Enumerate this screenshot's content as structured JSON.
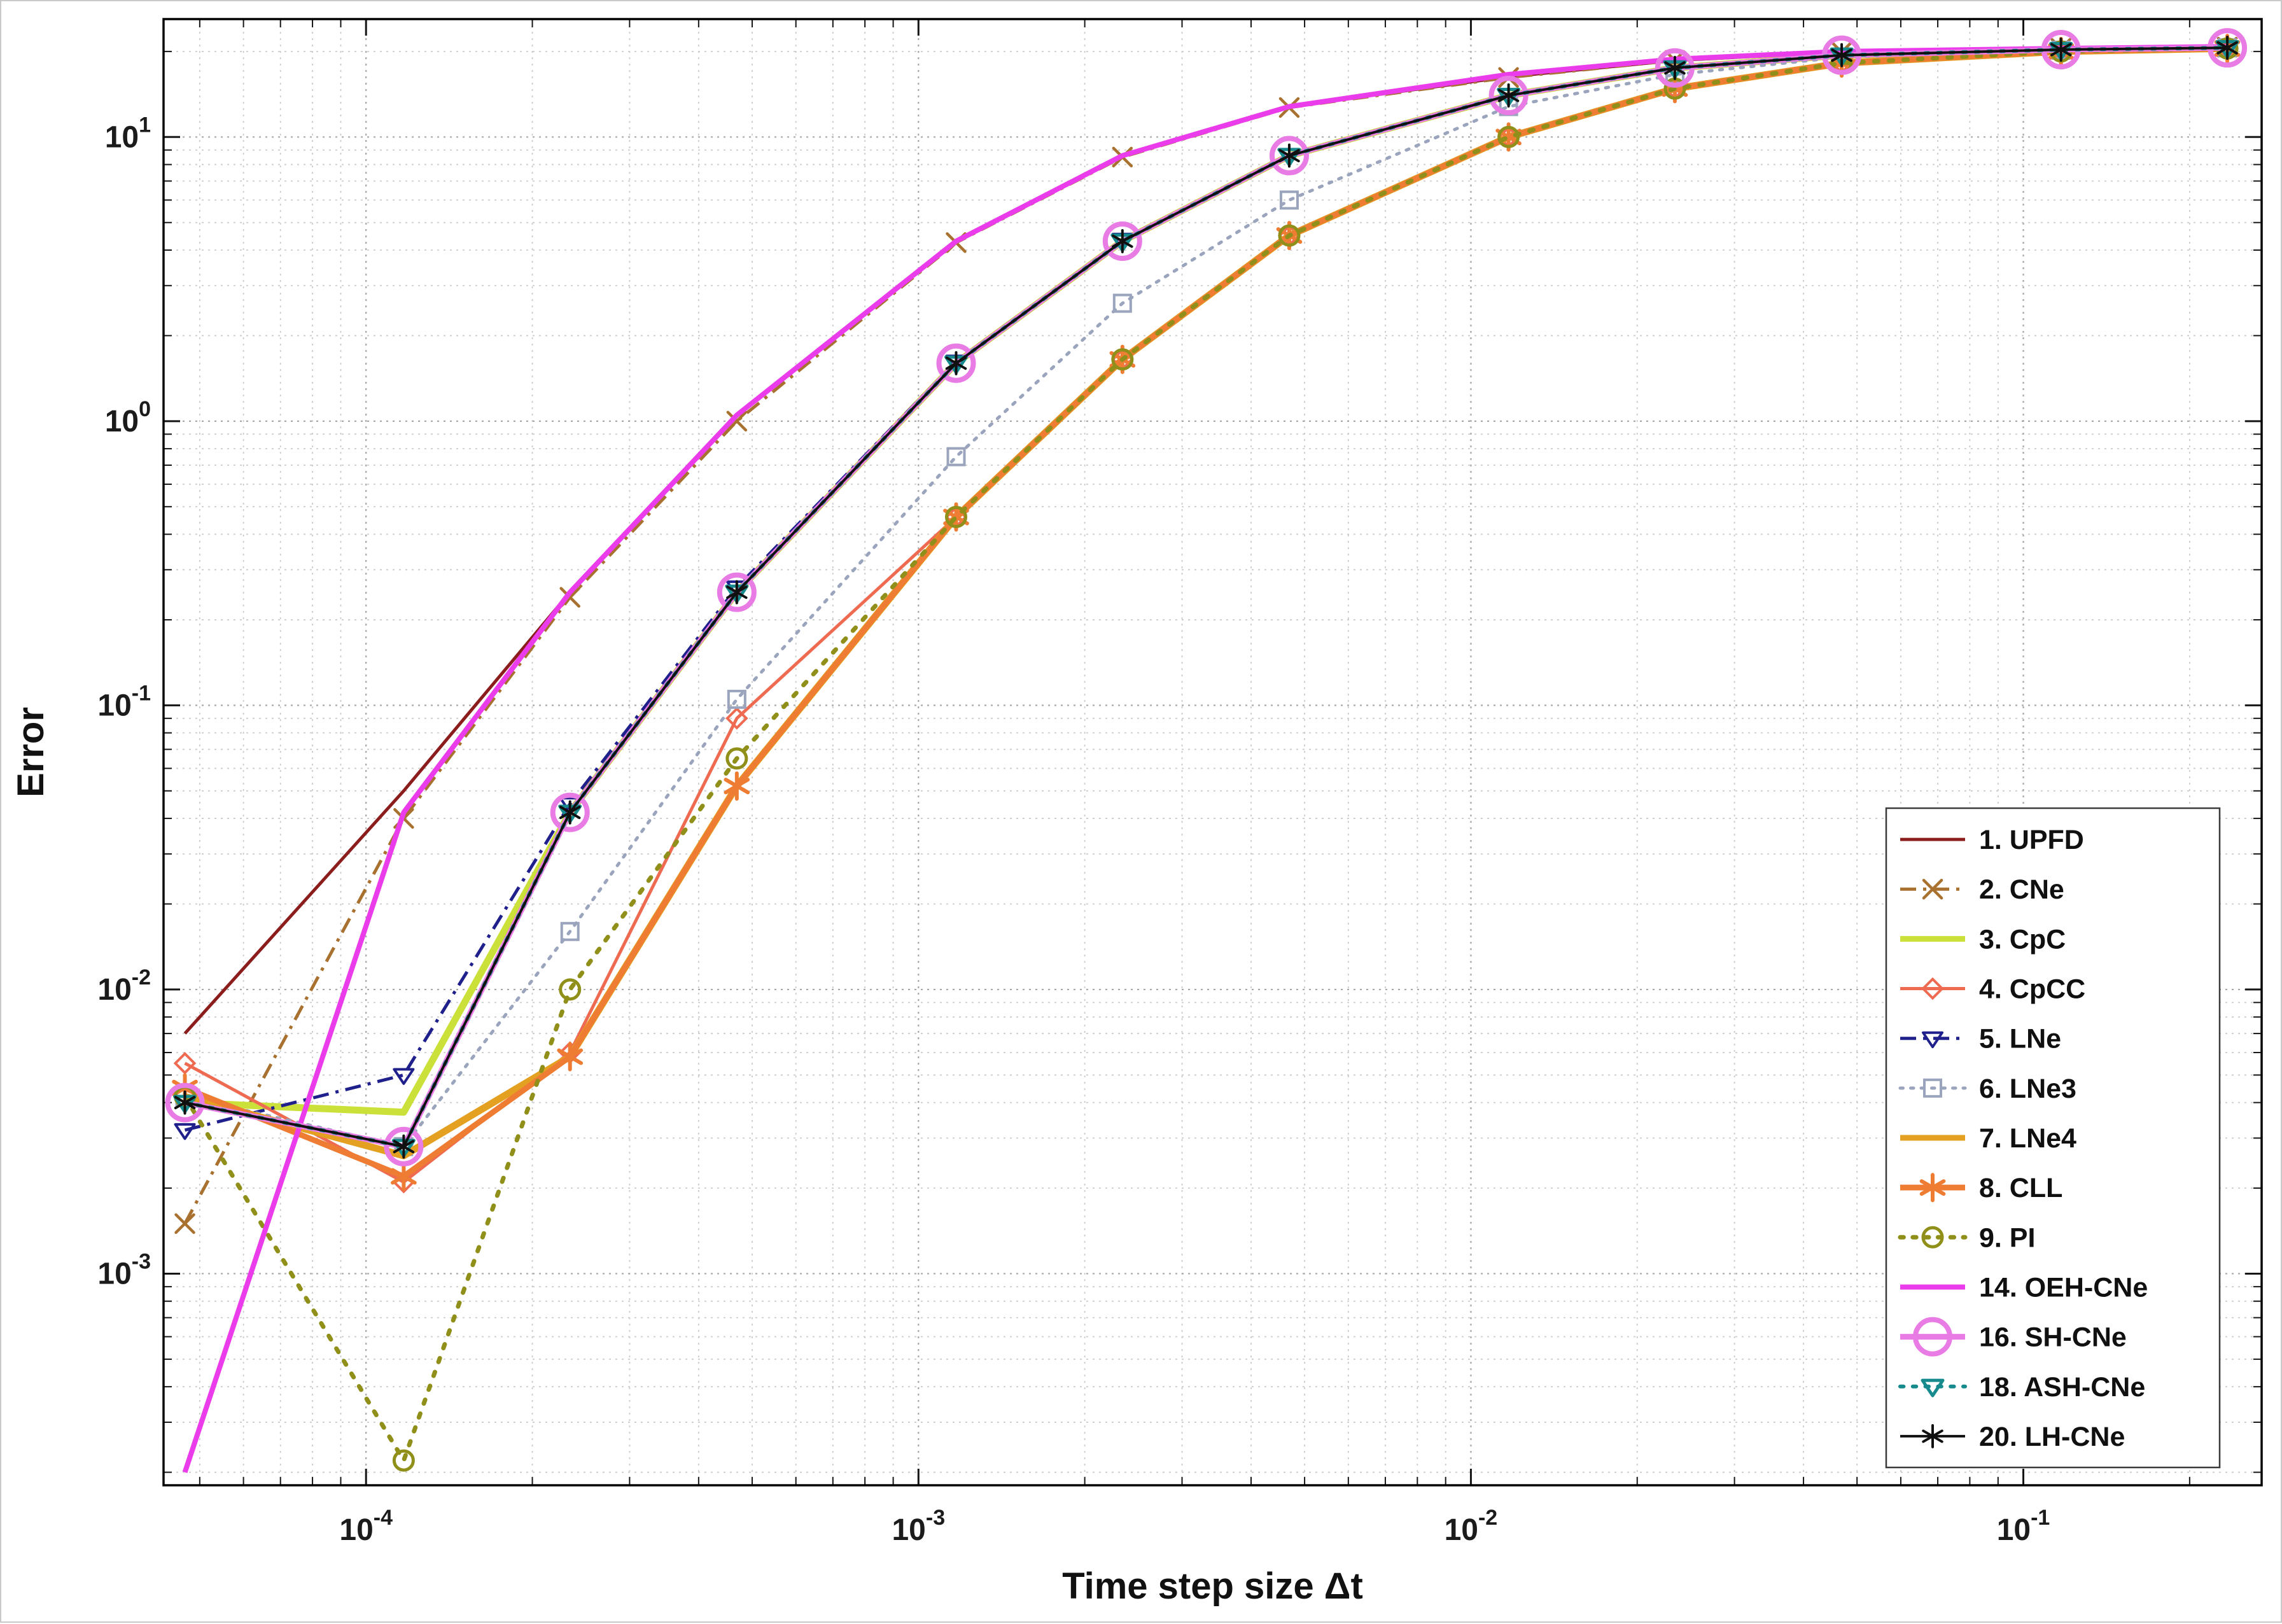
{
  "chart_data": {
    "type": "line",
    "title": "",
    "xlabel": "Time step size Δt",
    "ylabel": "Error",
    "x_scale": "log",
    "y_scale": "log",
    "grid": true,
    "legend_position": "inside-right-lower",
    "xlim": [
      4.3e-05,
      0.27
    ],
    "ylim": [
      0.00018,
      26
    ],
    "x_tick_exponents": [
      -4,
      -3,
      -2,
      -1
    ],
    "y_tick_exponents": [
      -3,
      -2,
      -1,
      0,
      1
    ],
    "x": [
      4.7e-05,
      0.000117,
      0.000234,
      0.000469,
      0.00117,
      0.00234,
      0.00469,
      0.0117,
      0.0234,
      0.0469,
      0.117,
      0.234
    ],
    "series": [
      {
        "name": "UPFD",
        "label": "1. UPFD",
        "color": "#8c1d1d",
        "line": "solid",
        "width": 5,
        "marker": "none",
        "marker_size": 0,
        "marker_stroke": 0,
        "values": [
          0.007,
          0.05,
          0.25,
          1.05,
          4.3,
          8.6,
          12.8,
          16.3,
          18.6,
          19.9,
          20.5,
          20.7
        ]
      },
      {
        "name": "CNe",
        "label": "2. CNe",
        "color": "#a8712f",
        "line": "dash-dot",
        "width": 5,
        "marker": "x",
        "marker_size": 14,
        "marker_stroke": 4.5,
        "values": [
          0.0015,
          0.04,
          0.24,
          1.0,
          4.25,
          8.5,
          12.7,
          16.2,
          18.6,
          19.9,
          20.5,
          20.7
        ]
      },
      {
        "name": "CpC",
        "label": "3. CpC",
        "color": "#cbe13a",
        "line": "solid",
        "width": 11,
        "marker": "none",
        "marker_size": 0,
        "marker_stroke": 0,
        "values": [
          0.004,
          0.0037,
          0.042,
          0.25,
          1.6,
          4.3,
          8.6,
          14.0,
          17.5,
          19.4,
          20.3,
          20.6
        ]
      },
      {
        "name": "CpCC",
        "label": "4. CpCC",
        "color": "#ee6a50",
        "line": "solid",
        "width": 5,
        "marker": "diamond-open",
        "marker_size": 15,
        "marker_stroke": 4,
        "values": [
          0.0055,
          0.0021,
          0.006,
          0.09,
          0.46,
          1.65,
          4.5,
          10.0,
          14.8,
          18.2,
          20.0,
          20.5
        ]
      },
      {
        "name": "LNe",
        "label": "5. LNe",
        "color": "#20208c",
        "line": "dash-dot",
        "width": 5,
        "marker": "triangle-down-open",
        "marker_size": 15,
        "marker_stroke": 4,
        "values": [
          0.0032,
          0.005,
          0.045,
          0.26,
          1.62,
          4.35,
          8.65,
          14.0,
          17.5,
          19.4,
          20.3,
          20.6
        ]
      },
      {
        "name": "LNe3",
        "label": "6. LNe3",
        "color": "#9aa4bc",
        "line": "dotted",
        "width": 5,
        "marker": "square-open",
        "marker_size": 13,
        "marker_stroke": 4,
        "values": [
          0.0042,
          0.0028,
          0.016,
          0.105,
          0.75,
          2.6,
          6.0,
          12.8,
          16.6,
          19.1,
          20.2,
          20.6
        ]
      },
      {
        "name": "LNe4",
        "label": "7. LNe4",
        "color": "#e3a021",
        "line": "solid",
        "width": 11,
        "marker": "none",
        "marker_size": 0,
        "marker_stroke": 0,
        "values": [
          0.0042,
          0.0026,
          0.0058,
          0.052,
          0.46,
          1.65,
          4.5,
          10.0,
          14.8,
          18.2,
          20.0,
          20.5
        ]
      },
      {
        "name": "CLL",
        "label": "8. CLL",
        "color": "#ee7d33",
        "line": "solid",
        "width": 9,
        "marker": "asterisk",
        "marker_size": 20,
        "marker_stroke": 6,
        "values": [
          0.0045,
          0.0022,
          0.0058,
          0.052,
          0.46,
          1.65,
          4.5,
          10.0,
          14.8,
          18.2,
          20.0,
          20.5
        ]
      },
      {
        "name": "PI",
        "label": "9. PI",
        "color": "#8f8f1a",
        "line": "dotted",
        "width": 7,
        "marker": "circle-open",
        "marker_size": 15,
        "marker_stroke": 5,
        "values": [
          0.0042,
          0.00022,
          0.01,
          0.065,
          0.46,
          1.65,
          4.5,
          10.0,
          14.8,
          18.2,
          20.0,
          20.5
        ]
      },
      {
        "name": "OEH-CNe",
        "label": "14. OEH-CNe",
        "color": "#ea3cea",
        "line": "solid",
        "width": 8,
        "marker": "none",
        "marker_size": 0,
        "marker_stroke": 0,
        "values": [
          0.0002,
          0.042,
          0.25,
          1.05,
          4.3,
          8.6,
          12.8,
          16.6,
          18.8,
          20.0,
          20.5,
          20.8
        ]
      },
      {
        "name": "SH-CNe",
        "label": "16. SH-CNe",
        "color": "#e87be4",
        "line": "solid",
        "width": 9,
        "marker": "circle-open",
        "marker_size": 27,
        "marker_stroke": 8,
        "values": [
          0.004,
          0.0028,
          0.042,
          0.25,
          1.6,
          4.3,
          8.6,
          14.0,
          17.5,
          19.4,
          20.3,
          20.6
        ]
      },
      {
        "name": "ASH-CNe",
        "label": "18. ASH-CNe",
        "color": "#168a8c",
        "line": "dotted",
        "width": 6,
        "marker": "triangle-down-open",
        "marker_size": 16,
        "marker_stroke": 5,
        "values": [
          0.004,
          0.0028,
          0.042,
          0.25,
          1.6,
          4.3,
          8.6,
          14.0,
          17.5,
          19.4,
          20.3,
          20.6
        ]
      },
      {
        "name": "LH-CNe",
        "label": "20. LH-CNe",
        "color": "#101010",
        "line": "solid",
        "width": 4,
        "marker": "asterisk",
        "marker_size": 17,
        "marker_stroke": 4,
        "values": [
          0.004,
          0.0028,
          0.042,
          0.25,
          1.6,
          4.3,
          8.6,
          14.0,
          17.5,
          19.4,
          20.3,
          20.6
        ]
      }
    ]
  }
}
